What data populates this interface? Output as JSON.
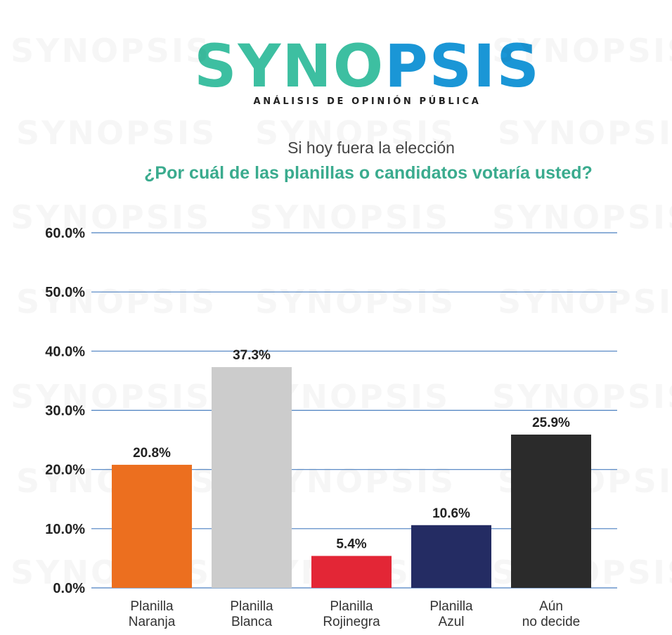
{
  "brand": {
    "name_part1": "SYNO",
    "name_part2": "PSIS",
    "tagline": "ANÁLISIS DE OPINIÓN PÚBLICA",
    "color_primary": "#3dbfa1",
    "color_secondary": "#1a96d6"
  },
  "chart_data": {
    "type": "bar",
    "subtitle": "Si hoy fuera la elección",
    "title": "¿Por cuál de las planillas o candidatos votaría usted?",
    "categories": [
      [
        "Planilla",
        "Naranja"
      ],
      [
        "Planilla",
        "Blanca"
      ],
      [
        "Planilla",
        "Rojinegra"
      ],
      [
        "Planilla",
        "Azul"
      ],
      [
        "Aún",
        "no decide"
      ]
    ],
    "values": [
      20.8,
      37.3,
      5.4,
      10.6,
      25.9
    ],
    "value_labels": [
      "20.8%",
      "37.3%",
      "5.4%",
      "10.6%",
      "25.9%"
    ],
    "colors": [
      "#ec6f1f",
      "#cccccc",
      "#e32636",
      "#242c63",
      "#2b2b2b"
    ],
    "y_ticks": [
      0,
      10,
      20,
      30,
      40,
      50,
      60
    ],
    "y_tick_labels": [
      "0.0%",
      "10.0%",
      "20.0%",
      "30.0%",
      "40.0%",
      "50.0%",
      "60.0%"
    ],
    "ylim": [
      0,
      60
    ],
    "grid": true,
    "grid_color": "#4a7fc0"
  }
}
